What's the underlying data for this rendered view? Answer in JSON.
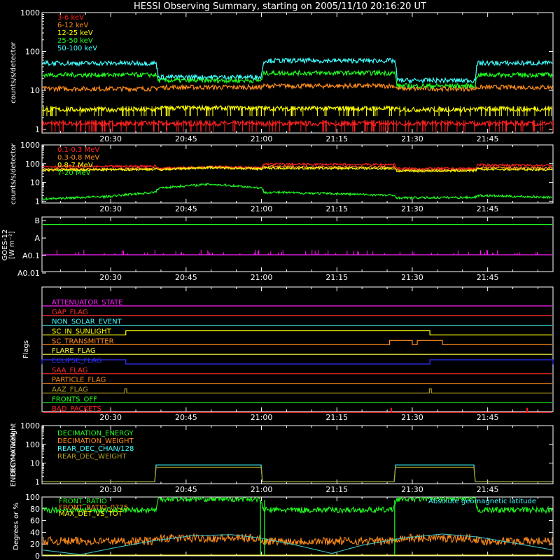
{
  "title": "HESSI Observing Summary, starting on 2005/11/10 20:16:20 UT",
  "time_ticks": [
    "20:30",
    "20:45",
    "21:00",
    "21:15",
    "21:30",
    "21:45"
  ],
  "time_tick_minutes": [
    30,
    45,
    60,
    75,
    90,
    105
  ],
  "time_range_minutes": [
    16.33,
    118.0
  ],
  "chart_data": [
    {
      "type": "line",
      "name": "panel-low-energy-rates",
      "ylabel": "counts/s/detector",
      "yscale": "log",
      "ylim": [
        0.8,
        1000
      ],
      "yticks": [
        "1",
        "10",
        "100",
        "1000"
      ],
      "ytick_values": [
        1,
        10,
        100,
        1000
      ],
      "x": [
        16.33,
        39.0,
        39.5,
        60.0,
        60.5,
        86.5,
        87.0,
        102.5,
        103.0,
        118.0
      ],
      "series": [
        {
          "name": "3-6 keV",
          "color": "#ff2020",
          "values": [
            1.4,
            1.4,
            1.4,
            1.4,
            1.4,
            1.4,
            1.4,
            1.4,
            1.4,
            1.4
          ]
        },
        {
          "name": "6-12 keV",
          "color": "#ff8c1a",
          "values": [
            11,
            11,
            12,
            12,
            13,
            13,
            11,
            11,
            12,
            12
          ]
        },
        {
          "name": "12-25 keV",
          "color": "#ffff00",
          "values": [
            3.2,
            3.2,
            3.5,
            3.5,
            3.4,
            3.4,
            3.2,
            3.2,
            3.3,
            3.3
          ]
        },
        {
          "name": "25-50 keV",
          "color": "#20ff20",
          "values": [
            25,
            25,
            18,
            18,
            28,
            28,
            13,
            13,
            25,
            25
          ]
        },
        {
          "name": "50-100 keV",
          "color": "#40ffff",
          "values": [
            50,
            50,
            22,
            22,
            58,
            58,
            18,
            18,
            50,
            50
          ]
        }
      ]
    },
    {
      "type": "line",
      "name": "panel-high-energy-rates",
      "ylabel": "counts/s/detector",
      "yscale": "log",
      "ylim": [
        0.8,
        1000
      ],
      "yticks": [
        "1",
        "10",
        "100",
        "1000"
      ],
      "ytick_values": [
        1,
        10,
        100,
        1000
      ],
      "x": [
        16.33,
        30,
        39.0,
        39.5,
        50,
        60.0,
        60.5,
        75,
        86.5,
        87.0,
        102.5,
        103.0,
        118.0
      ],
      "series": [
        {
          "name": "0.1-0.3 MeV",
          "color": "#ff2020",
          "values": [
            70,
            70,
            75,
            55,
            70,
            60,
            95,
            90,
            90,
            55,
            55,
            85,
            80
          ]
        },
        {
          "name": "0.3-0.8 MeV",
          "color": "#ff8c1a",
          "values": [
            50,
            52,
            55,
            50,
            65,
            55,
            70,
            65,
            65,
            45,
            45,
            60,
            58
          ]
        },
        {
          "name": "0.8-7 MeV",
          "color": "#ffff00",
          "values": [
            45,
            47,
            50,
            48,
            62,
            52,
            58,
            56,
            55,
            40,
            42,
            50,
            48
          ]
        },
        {
          "name": "7-20 MeV",
          "color": "#20ff20",
          "values": [
            1.3,
            1.8,
            3,
            5,
            8,
            5,
            3,
            2.5,
            2,
            1.5,
            1.6,
            2,
            1.6
          ]
        }
      ]
    },
    {
      "type": "line",
      "name": "panel-goes",
      "ylabel": "GOES-12",
      "ylabel2": "[W m⁻²]",
      "yticks": [
        "B",
        "A",
        "A0.1",
        "A0.01"
      ],
      "ytick_values": [
        1e-07,
        1e-08,
        1e-09,
        1e-10
      ],
      "yscale": "log",
      "ylim": [
        1.2e-10,
        1.6e-07
      ],
      "x": [
        16.33,
        118.0
      ],
      "series": [
        {
          "name": "1-8 A",
          "color": "#20ff20",
          "values": [
            6e-08,
            6e-08
          ]
        },
        {
          "name": "0.5-4 A",
          "color": "#ff20ff",
          "values": [
            1.1e-09,
            1.1e-09
          ]
        }
      ]
    },
    {
      "type": "line",
      "name": "panel-flags",
      "ylabel": "Flags",
      "x": [
        16.33,
        118.0
      ],
      "flags": [
        {
          "name": "ATTENUATOR_STATE",
          "color": "#ff20ff",
          "highs": []
        },
        {
          "name": "GAP_FLAG",
          "color": "#ff3030",
          "highs": []
        },
        {
          "name": "NON_SOLAR_EVENT",
          "color": "#40ffff",
          "highs": []
        },
        {
          "name": "SC_IN_SUNLIGHT",
          "color": "#ffff00",
          "highs": [
            [
              33.0,
              93.5
            ]
          ]
        },
        {
          "name": "SC_TRANSMITTER",
          "color": "#ff8c1a",
          "highs": [
            [
              85.5,
              90.0
            ],
            [
              91.0,
              96.0
            ]
          ]
        },
        {
          "name": "FLARE_FLAG",
          "color": "#ffff40",
          "highs": []
        },
        {
          "name": "ECLIPSE_FLAG",
          "color": "#3030ff",
          "highs": [
            [
              16.33,
              33.0
            ],
            [
              93.5,
              118.0
            ]
          ]
        },
        {
          "name": "SAA_FLAG",
          "color": "#ff3030",
          "highs": []
        },
        {
          "name": "PARTICLE_FLAG",
          "color": "#ff8c1a",
          "highs": []
        },
        {
          "name": "AAZ_FLAG",
          "color": "#b0a020",
          "highs": [
            [
              32.8,
              33.2
            ],
            [
              93.4,
              93.8
            ]
          ]
        },
        {
          "name": "FRONTS_OFF",
          "color": "#20ff20",
          "highs": []
        },
        {
          "name": "BAD_PACKETS",
          "color": "#ff2020",
          "highs": [
            [
              85.8,
              85.9
            ],
            [
              112.8,
              112.9
            ]
          ]
        }
      ]
    },
    {
      "type": "line",
      "name": "panel-decimation",
      "ylabel": "DECIMATION",
      "ylabel2": "ENERGY or weight",
      "yscale": "log",
      "ylim": [
        0.8,
        1000
      ],
      "yticks": [
        "1",
        "10",
        "100",
        "1000"
      ],
      "ytick_values": [
        1,
        10,
        100,
        1000
      ],
      "series": [
        {
          "name": "DECIMATION_ENERGY",
          "color": "#20ff20",
          "x": [
            16.33,
            118.0
          ],
          "values": [
            0,
            0
          ]
        },
        {
          "name": "DECIMATION_WEIGHT",
          "color": "#ff8c1a",
          "x": [
            16.33,
            118.0
          ],
          "values": [
            0,
            0
          ]
        },
        {
          "name": "REAR_DEC_CHAN/128",
          "color": "#40ffff",
          "x": [
            16.33,
            39.0,
            39.0,
            60.0,
            60.0,
            86.5,
            86.5,
            102.5,
            102.5,
            118.0
          ],
          "values": [
            1,
            1,
            8,
            8,
            1,
            1,
            8,
            8,
            1,
            1
          ]
        },
        {
          "name": "REAR_DEC_WEIGHT",
          "color": "#b0a020",
          "x": [
            16.33,
            39.0,
            39.0,
            60.0,
            60.0,
            86.5,
            86.5,
            102.5,
            102.5,
            118.0
          ],
          "values": [
            1,
            1,
            6,
            6,
            1,
            1,
            6,
            6,
            1,
            1
          ]
        }
      ]
    },
    {
      "type": "line",
      "name": "panel-ratios",
      "ylabel": "Degrees or %",
      "ylim": [
        0,
        100
      ],
      "yticks": [
        "0",
        "20",
        "40",
        "60",
        "80",
        "100"
      ],
      "ytick_values": [
        0,
        20,
        40,
        60,
        80,
        100
      ],
      "legend_right": "Absolute geomagnetic latitude",
      "series": [
        {
          "name": "FRONT_RATIO",
          "color": "#20ff20",
          "x": [
            16.33,
            39.0,
            39.5,
            59.5,
            60.5,
            86.0,
            87.0,
            102.5,
            103.0,
            118.0
          ],
          "values": [
            78,
            78,
            97,
            97,
            78,
            78,
            97,
            97,
            78,
            78
          ]
        },
        {
          "name": "FRONT_RATIO_0725",
          "color": "#ff8c1a",
          "x": [
            16.33,
            39.0,
            39.5,
            59.5,
            60.5,
            86.0,
            87.0,
            102.5,
            103.0,
            118.0
          ],
          "values": [
            25,
            25,
            30,
            30,
            25,
            25,
            30,
            30,
            25,
            25
          ]
        },
        {
          "name": "MAX_DET_VS_TOT",
          "color": "#ffff00",
          "x": [
            16.33,
            118.0
          ],
          "values": [
            0,
            0
          ]
        },
        {
          "name": "Absolute geomagnetic latitude",
          "color": "#40c0c0",
          "x": [
            16.33,
            24,
            31,
            38,
            46,
            54,
            60,
            67,
            74,
            80,
            88,
            96,
            103,
            110,
            118
          ],
          "values": [
            10,
            2,
            14,
            25,
            34,
            36,
            30,
            18,
            4,
            18,
            30,
            37,
            32,
            22,
            10
          ]
        }
      ]
    }
  ]
}
